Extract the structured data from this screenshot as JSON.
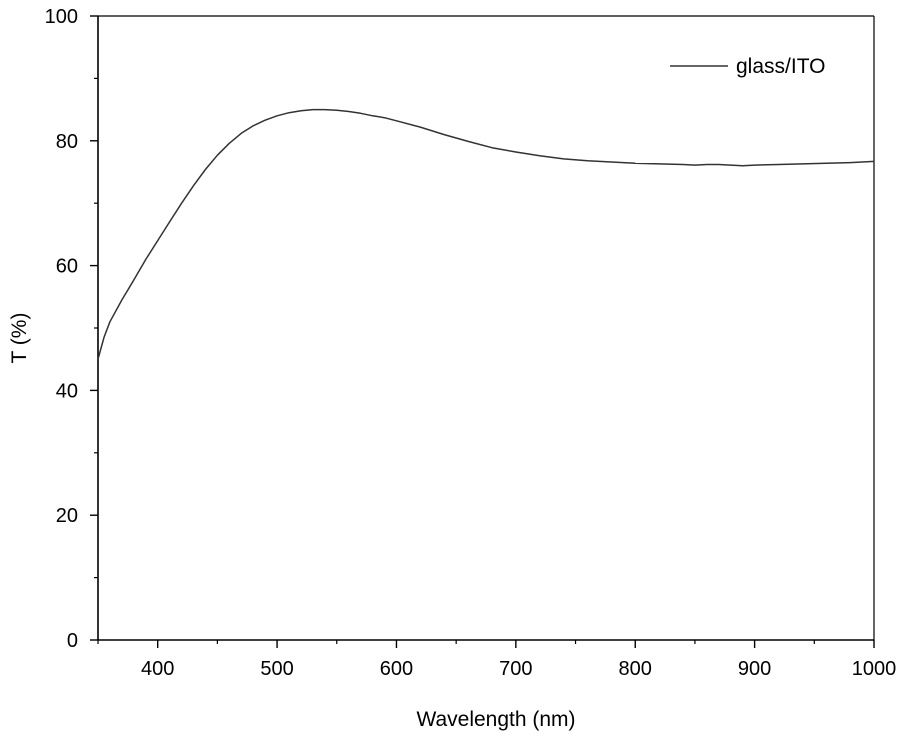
{
  "chart_data": {
    "type": "line",
    "title": "",
    "xlabel": "Wavelength (nm)",
    "ylabel": "T (%)",
    "xlim": [
      350,
      1000
    ],
    "ylim": [
      0,
      100
    ],
    "x_ticks": [
      400,
      500,
      600,
      700,
      800,
      900,
      1000
    ],
    "x_tick_labels": [
      "400",
      "500",
      "600",
      "700",
      "800",
      "900",
      "1000"
    ],
    "y_ticks": [
      0,
      20,
      40,
      60,
      80,
      100
    ],
    "y_tick_labels": [
      "0",
      "20",
      "40",
      "60",
      "80",
      "100"
    ],
    "grid": false,
    "legend_position": "top-right",
    "line_color": "#333333",
    "series": [
      {
        "name": "glass/ITO",
        "x": [
          350,
          355,
          360,
          370,
          380,
          390,
          400,
          410,
          420,
          430,
          440,
          450,
          460,
          470,
          480,
          490,
          500,
          510,
          520,
          530,
          540,
          550,
          560,
          570,
          580,
          590,
          600,
          620,
          640,
          660,
          680,
          700,
          720,
          740,
          760,
          780,
          800,
          820,
          840,
          850,
          860,
          870,
          880,
          890,
          900,
          920,
          940,
          960,
          980,
          1000
        ],
        "values": [
          45.0,
          48.5,
          51.0,
          54.5,
          57.7,
          61.0,
          64.0,
          67.0,
          70.0,
          72.8,
          75.4,
          77.7,
          79.6,
          81.2,
          82.4,
          83.3,
          84.0,
          84.5,
          84.8,
          85.0,
          85.0,
          84.9,
          84.7,
          84.4,
          84.0,
          83.7,
          83.2,
          82.2,
          81.0,
          79.9,
          78.9,
          78.2,
          77.6,
          77.1,
          76.8,
          76.6,
          76.4,
          76.3,
          76.2,
          76.1,
          76.2,
          76.2,
          76.1,
          76.0,
          76.1,
          76.2,
          76.3,
          76.4,
          76.5,
          76.7
        ]
      }
    ]
  }
}
